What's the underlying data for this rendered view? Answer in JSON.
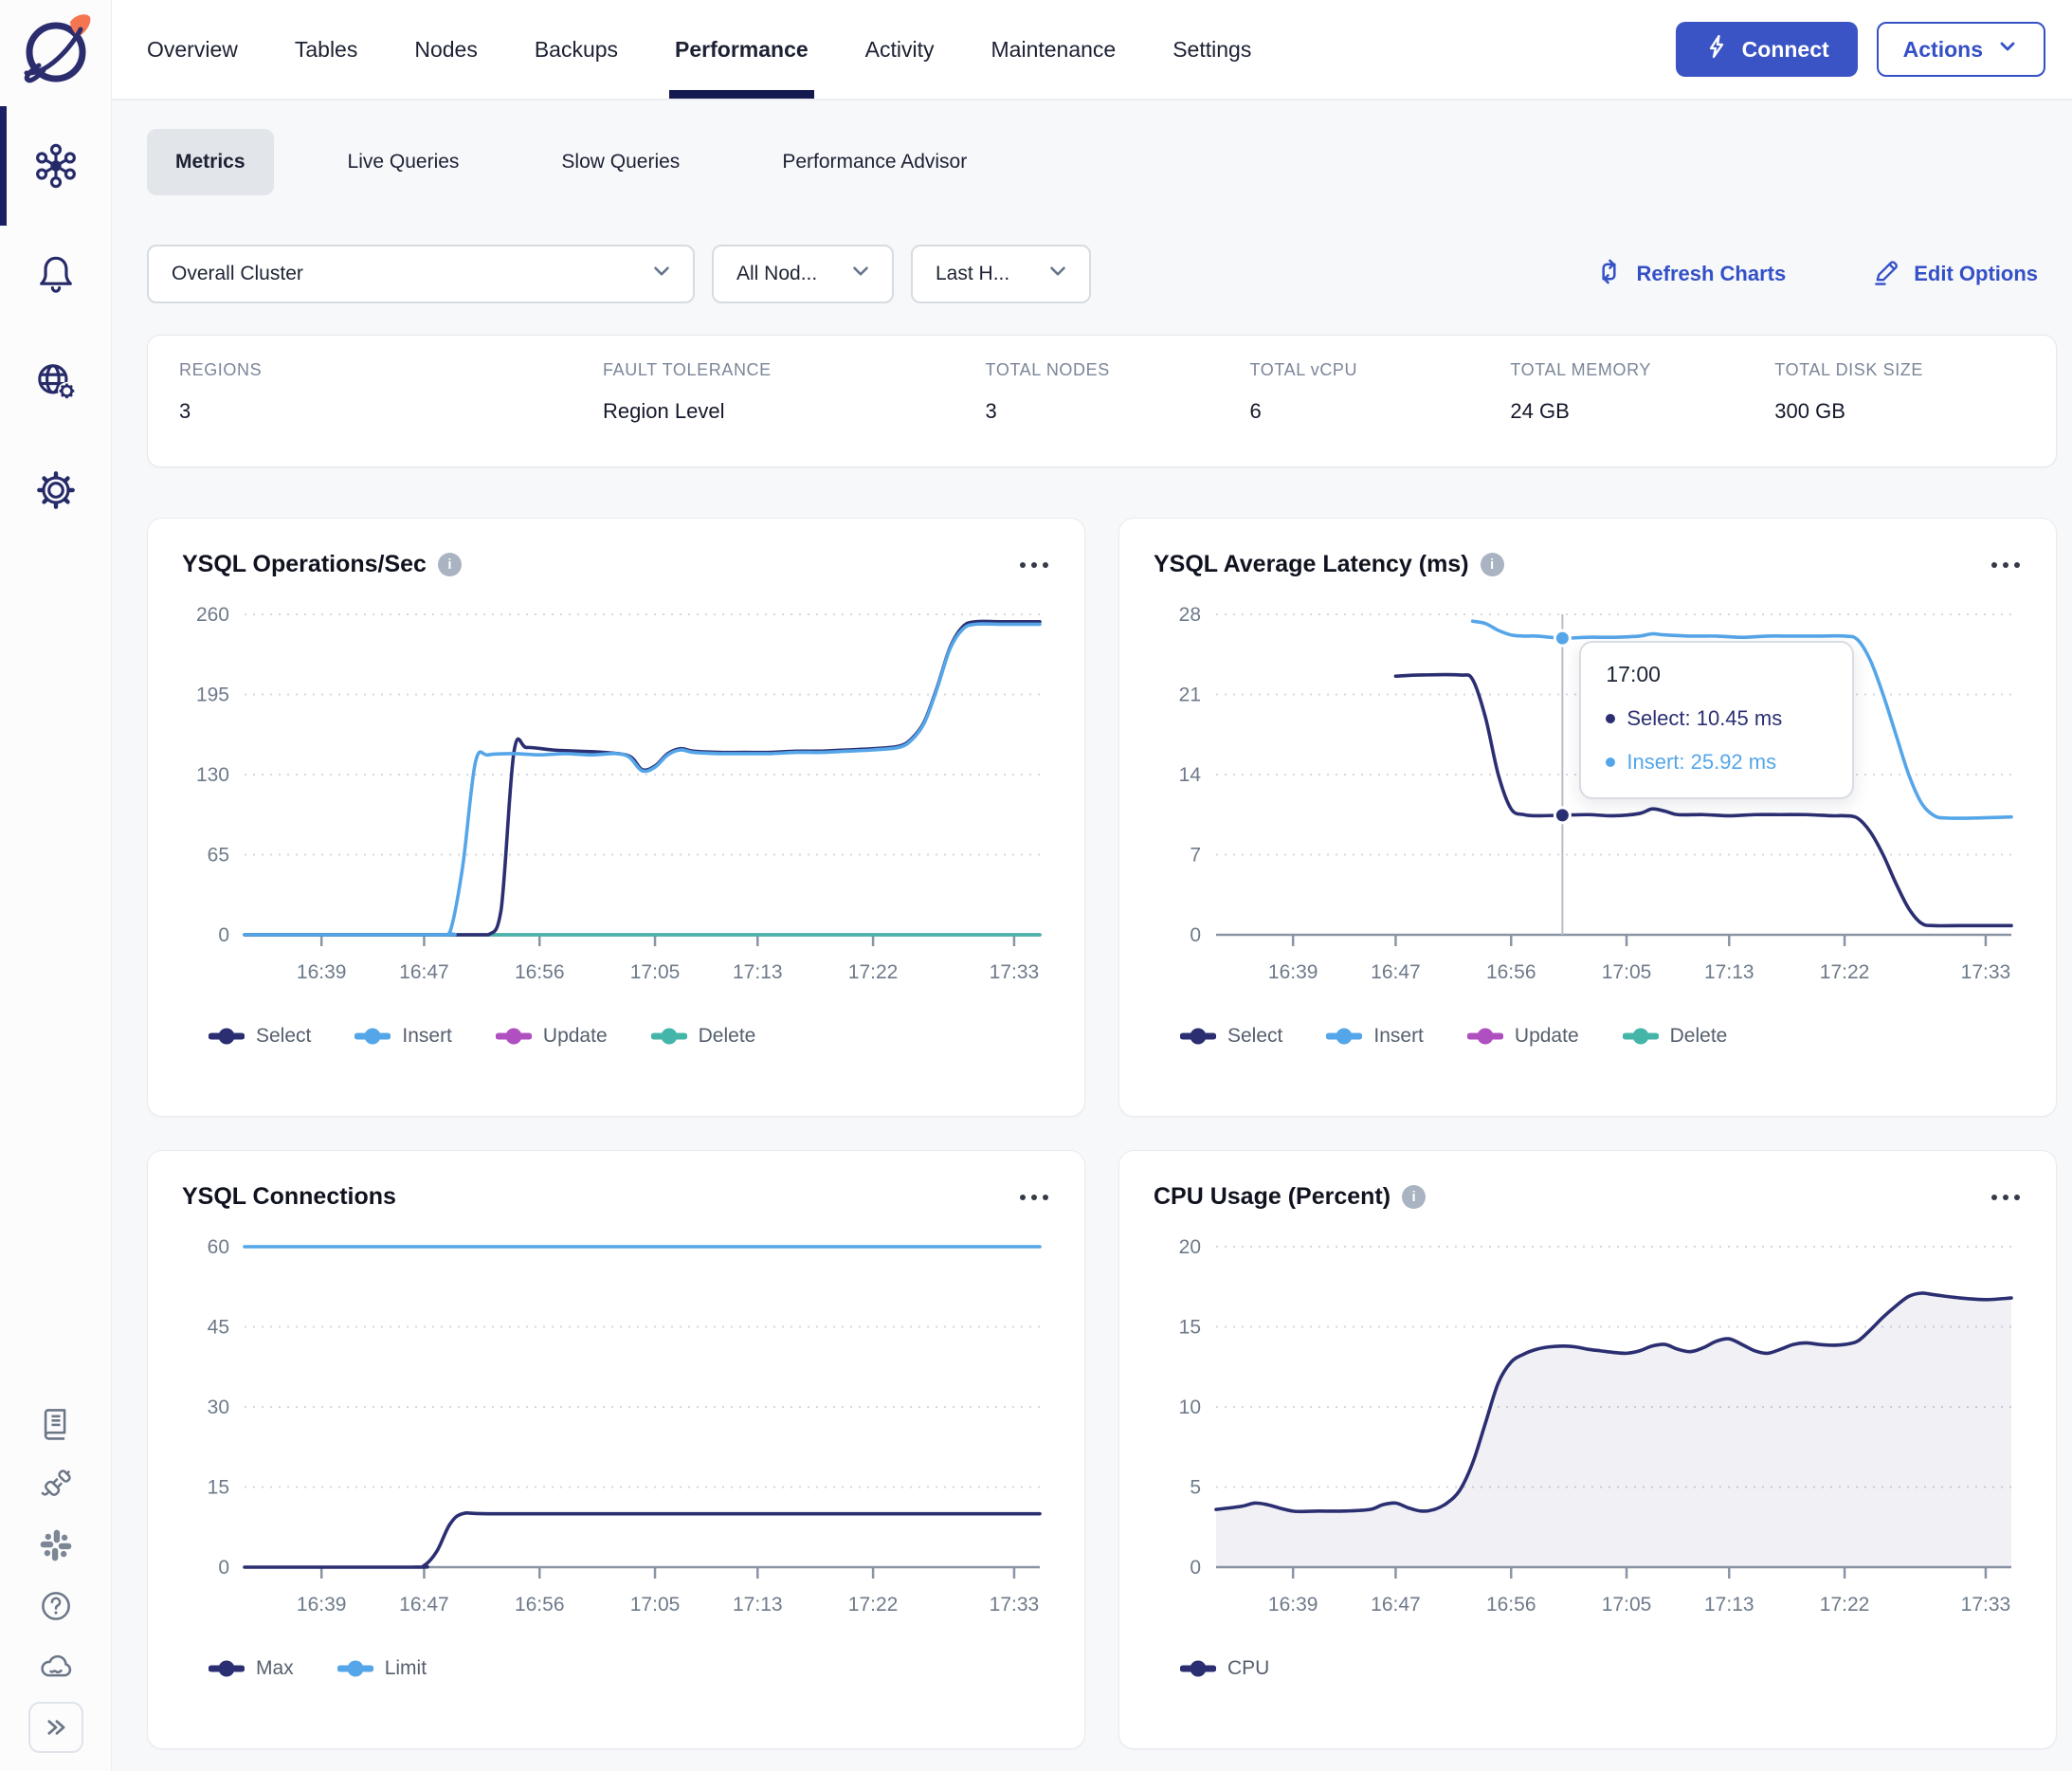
{
  "colors": {
    "accent_blue": "#3450c6",
    "navy_series": "#2b2f72",
    "light_blue_series": "#55a6e8",
    "magenta_series": "#b04fc0",
    "teal_series": "#45b5aa",
    "active_tab_underline": "#141a4f",
    "cpu_area_fill": "rgba(43,47,114,0.07)"
  },
  "sidebar": {
    "items": [
      {
        "icon": "cluster-icon",
        "active": true
      },
      {
        "icon": "bell-icon",
        "active": false
      },
      {
        "icon": "globe-gear-icon",
        "active": false
      },
      {
        "icon": "gear-icon",
        "active": false
      }
    ],
    "footer_items": [
      {
        "icon": "book-icon"
      },
      {
        "icon": "plug-icon"
      },
      {
        "icon": "slack-icon"
      },
      {
        "icon": "help-icon"
      },
      {
        "icon": "cloud-icon"
      },
      {
        "icon": "expand-icon"
      }
    ]
  },
  "topbar": {
    "tabs": [
      "Overview",
      "Tables",
      "Nodes",
      "Backups",
      "Performance",
      "Activity",
      "Maintenance",
      "Settings"
    ],
    "active_tab": "Performance",
    "connect_label": "Connect",
    "actions_label": "Actions"
  },
  "subtabs": {
    "items": [
      "Metrics",
      "Live Queries",
      "Slow Queries",
      "Performance Advisor"
    ],
    "active": "Metrics"
  },
  "filters": {
    "cluster": "Overall Cluster",
    "nodes": "All Nod...",
    "range": "Last H...",
    "refresh_label": "Refresh Charts",
    "edit_label": "Edit Options"
  },
  "misc": {
    "info_glyph": "i"
  },
  "stats": [
    {
      "label": "REGIONS",
      "value": "3"
    },
    {
      "label": "FAULT TOLERANCE",
      "value": "Region Level"
    },
    {
      "label": "TOTAL NODES",
      "value": "3"
    },
    {
      "label": "TOTAL vCPU",
      "value": "6"
    },
    {
      "label": "TOTAL MEMORY",
      "value": "24 GB"
    },
    {
      "label": "TOTAL DISK SIZE",
      "value": "300 GB"
    }
  ],
  "chart_data": [
    {
      "type": "line",
      "title": "YSQL Operations/Sec",
      "info": true,
      "ylim": [
        0,
        260
      ],
      "yticks": [
        0,
        65,
        130,
        195,
        260
      ],
      "x_start": "16:33",
      "x_end": "17:35",
      "xticks": [
        "16:39",
        "16:47",
        "16:56",
        "17:05",
        "17:13",
        "17:22",
        "17:33"
      ],
      "legend": [
        {
          "label": "Select",
          "color": "#2b2f72"
        },
        {
          "label": "Insert",
          "color": "#55a6e8"
        },
        {
          "label": "Update",
          "color": "#b04fc0"
        },
        {
          "label": "Delete",
          "color": "#45b5aa"
        }
      ],
      "series": [
        {
          "name": "Update",
          "color": "#b04fc0",
          "points": [
            [
              "16:33",
              0
            ],
            [
              "17:35",
              0
            ]
          ]
        },
        {
          "name": "Delete",
          "color": "#45b5aa",
          "points": [
            [
              "16:33",
              0
            ],
            [
              "17:35",
              0
            ]
          ]
        },
        {
          "name": "Select",
          "color": "#2b2f72",
          "points": [
            [
              "16:33",
              0
            ],
            [
              "16:50",
              0
            ],
            [
              "16:52",
              0
            ],
            [
              "16:53",
              20
            ],
            [
              "16:54",
              148
            ],
            [
              "16:55",
              152
            ],
            [
              "16:57",
              150
            ],
            [
              "16:59",
              149
            ],
            [
              "17:01",
              148
            ],
            [
              "17:03",
              145
            ],
            [
              "17:04",
              134
            ],
            [
              "17:05",
              137
            ],
            [
              "17:06",
              147
            ],
            [
              "17:07",
              151
            ],
            [
              "17:08",
              149
            ],
            [
              "17:10",
              148
            ],
            [
              "17:12",
              148
            ],
            [
              "17:14",
              148
            ],
            [
              "17:16",
              149
            ],
            [
              "17:18",
              149
            ],
            [
              "17:20",
              150
            ],
            [
              "17:22",
              151
            ],
            [
              "17:24",
              153
            ],
            [
              "17:25",
              159
            ],
            [
              "17:26",
              173
            ],
            [
              "17:27",
              201
            ],
            [
              "17:28",
              233
            ],
            [
              "17:29",
              250
            ],
            [
              "17:30",
              254
            ],
            [
              "17:32",
              254
            ],
            [
              "17:35",
              254
            ]
          ]
        },
        {
          "name": "Insert",
          "color": "#55a6e8",
          "points": [
            [
              "16:33",
              0
            ],
            [
              "16:48",
              0
            ],
            [
              "16:49",
              2
            ],
            [
              "16:50",
              55
            ],
            [
              "16:51",
              140
            ],
            [
              "16:52",
              146
            ],
            [
              "16:54",
              147
            ],
            [
              "16:56",
              146
            ],
            [
              "16:58",
              147
            ],
            [
              "17:00",
              146
            ],
            [
              "17:02",
              147
            ],
            [
              "17:03",
              144
            ],
            [
              "17:04",
              133
            ],
            [
              "17:05",
              136
            ],
            [
              "17:06",
              146
            ],
            [
              "17:07",
              150
            ],
            [
              "17:08",
              148
            ],
            [
              "17:10",
              147
            ],
            [
              "17:12",
              147
            ],
            [
              "17:14",
              147
            ],
            [
              "17:16",
              148
            ],
            [
              "17:18",
              148
            ],
            [
              "17:20",
              149
            ],
            [
              "17:22",
              150
            ],
            [
              "17:24",
              152
            ],
            [
              "17:25",
              158
            ],
            [
              "17:26",
              172
            ],
            [
              "17:27",
              200
            ],
            [
              "17:28",
              232
            ],
            [
              "17:29",
              248
            ],
            [
              "17:30",
              252
            ],
            [
              "17:32",
              252
            ],
            [
              "17:35",
              252
            ]
          ]
        }
      ]
    },
    {
      "type": "line",
      "title": "YSQL Average Latency (ms)",
      "info": true,
      "ylim": [
        0,
        28
      ],
      "yticks": [
        0,
        7,
        14,
        21,
        28
      ],
      "x_start": "16:33",
      "x_end": "17:35",
      "xticks": [
        "16:39",
        "16:47",
        "16:56",
        "17:05",
        "17:13",
        "17:22",
        "17:33"
      ],
      "legend": [
        {
          "label": "Select",
          "color": "#2b2f72"
        },
        {
          "label": "Insert",
          "color": "#55a6e8"
        },
        {
          "label": "Update",
          "color": "#b04fc0"
        },
        {
          "label": "Delete",
          "color": "#45b5aa"
        }
      ],
      "series": [
        {
          "name": "Select",
          "color": "#2b2f72",
          "points": [
            [
              "16:47",
              22.6
            ],
            [
              "16:49",
              22.7
            ],
            [
              "16:52",
              22.7
            ],
            [
              "16:53",
              22.3
            ],
            [
              "16:54",
              19
            ],
            [
              "16:55",
              14
            ],
            [
              "16:56",
              11
            ],
            [
              "16:57",
              10.5
            ],
            [
              "16:58",
              10.4
            ],
            [
              "17:00",
              10.45
            ],
            [
              "17:02",
              10.5
            ],
            [
              "17:04",
              10.4
            ],
            [
              "17:06",
              10.6
            ],
            [
              "17:07",
              11
            ],
            [
              "17:08",
              10.8
            ],
            [
              "17:09",
              10.5
            ],
            [
              "17:11",
              10.5
            ],
            [
              "17:13",
              10.4
            ],
            [
              "17:15",
              10.5
            ],
            [
              "17:17",
              10.5
            ],
            [
              "17:19",
              10.5
            ],
            [
              "17:21",
              10.4
            ],
            [
              "17:22",
              10.4
            ],
            [
              "17:23",
              10.2
            ],
            [
              "17:24",
              9
            ],
            [
              "17:25",
              7
            ],
            [
              "17:26",
              4.5
            ],
            [
              "17:27",
              2.3
            ],
            [
              "17:28",
              1.0
            ],
            [
              "17:29",
              0.8
            ],
            [
              "17:31",
              0.8
            ],
            [
              "17:35",
              0.8
            ]
          ]
        },
        {
          "name": "Insert",
          "color": "#55a6e8",
          "points": [
            [
              "16:53",
              27.4
            ],
            [
              "16:54",
              27.2
            ],
            [
              "16:55",
              26.6
            ],
            [
              "16:56",
              26.2
            ],
            [
              "16:57",
              26.1
            ],
            [
              "16:58",
              26.1
            ],
            [
              "17:00",
              25.92
            ],
            [
              "17:02",
              26
            ],
            [
              "17:04",
              26
            ],
            [
              "17:06",
              26.1
            ],
            [
              "17:07",
              26.3
            ],
            [
              "17:08",
              26.2
            ],
            [
              "17:10",
              26.1
            ],
            [
              "17:12",
              26.1
            ],
            [
              "17:14",
              26
            ],
            [
              "17:16",
              26.1
            ],
            [
              "17:18",
              26.1
            ],
            [
              "17:20",
              26.1
            ],
            [
              "17:22",
              26.1
            ],
            [
              "17:23",
              25.8
            ],
            [
              "17:24",
              24
            ],
            [
              "17:25",
              21
            ],
            [
              "17:26",
              17.5
            ],
            [
              "17:27",
              14
            ],
            [
              "17:28",
              11.5
            ],
            [
              "17:29",
              10.4
            ],
            [
              "17:30",
              10.2
            ],
            [
              "17:32",
              10.2
            ],
            [
              "17:35",
              10.3
            ]
          ]
        }
      ],
      "tooltip": {
        "time": "17:00",
        "rows": [
          {
            "text": "Select: 10.45 ms",
            "v": 10.45,
            "color": "#2b2f72"
          },
          {
            "text": "Insert: 25.92 ms",
            "v": 25.92,
            "color": "#55a6e8"
          }
        ]
      }
    },
    {
      "type": "line",
      "title": "YSQL Connections",
      "info": false,
      "ylim": [
        0,
        60
      ],
      "yticks": [
        0,
        15,
        30,
        45,
        60
      ],
      "x_start": "16:33",
      "x_end": "17:35",
      "xticks": [
        "16:39",
        "16:47",
        "16:56",
        "17:05",
        "17:13",
        "17:22",
        "17:33"
      ],
      "legend": [
        {
          "label": "Max",
          "color": "#2b2f72"
        },
        {
          "label": "Limit",
          "color": "#55a6e8"
        }
      ],
      "series": [
        {
          "name": "Limit",
          "color": "#55a6e8",
          "points": [
            [
              "16:33",
              60
            ],
            [
              "17:35",
              60
            ]
          ]
        },
        {
          "name": "Max",
          "color": "#2b2f72",
          "points": [
            [
              "16:33",
              0
            ],
            [
              "16:46",
              0
            ],
            [
              "16:47",
              0.3
            ],
            [
              "16:48",
              3
            ],
            [
              "16:49",
              8
            ],
            [
              "16:50",
              10
            ],
            [
              "16:52",
              10
            ],
            [
              "17:00",
              10
            ],
            [
              "17:10",
              10
            ],
            [
              "17:20",
              10
            ],
            [
              "17:35",
              10
            ]
          ]
        }
      ]
    },
    {
      "type": "area",
      "title": "CPU Usage (Percent)",
      "info": true,
      "ylim": [
        0,
        20
      ],
      "yticks": [
        0,
        5,
        10,
        15,
        20
      ],
      "x_start": "16:33",
      "x_end": "17:35",
      "xticks": [
        "16:39",
        "16:47",
        "16:56",
        "17:05",
        "17:13",
        "17:22",
        "17:33"
      ],
      "area_fill": "rgba(43,47,114,0.07)",
      "legend": [
        {
          "label": "CPU",
          "color": "#2b2f72"
        }
      ],
      "series": [
        {
          "name": "CPU",
          "color": "#2b2f72",
          "points": [
            [
              "16:33",
              3.6
            ],
            [
              "16:35",
              3.8
            ],
            [
              "16:36",
              4
            ],
            [
              "16:37",
              3.9
            ],
            [
              "16:39",
              3.5
            ],
            [
              "16:41",
              3.5
            ],
            [
              "16:43",
              3.5
            ],
            [
              "16:45",
              3.6
            ],
            [
              "16:46",
              3.9
            ],
            [
              "16:47",
              4
            ],
            [
              "16:48",
              3.7
            ],
            [
              "16:49",
              3.5
            ],
            [
              "16:50",
              3.6
            ],
            [
              "16:51",
              4
            ],
            [
              "16:52",
              4.8
            ],
            [
              "16:53",
              6.5
            ],
            [
              "16:54",
              9
            ],
            [
              "16:55",
              11.5
            ],
            [
              "16:56",
              12.8
            ],
            [
              "16:57",
              13.3
            ],
            [
              "16:58",
              13.6
            ],
            [
              "16:59",
              13.75
            ],
            [
              "17:00",
              13.8
            ],
            [
              "17:01",
              13.75
            ],
            [
              "17:02",
              13.6
            ],
            [
              "17:03",
              13.5
            ],
            [
              "17:04",
              13.4
            ],
            [
              "17:05",
              13.35
            ],
            [
              "17:06",
              13.5
            ],
            [
              "17:07",
              13.8
            ],
            [
              "17:08",
              13.9
            ],
            [
              "17:09",
              13.6
            ],
            [
              "17:10",
              13.45
            ],
            [
              "17:11",
              13.7
            ],
            [
              "17:12",
              14.1
            ],
            [
              "17:13",
              14.25
            ],
            [
              "17:14",
              13.9
            ],
            [
              "17:15",
              13.5
            ],
            [
              "17:16",
              13.35
            ],
            [
              "17:17",
              13.6
            ],
            [
              "17:18",
              13.9
            ],
            [
              "17:19",
              14
            ],
            [
              "17:20",
              13.9
            ],
            [
              "17:21",
              13.85
            ],
            [
              "17:22",
              13.9
            ],
            [
              "17:23",
              14.1
            ],
            [
              "17:24",
              14.8
            ],
            [
              "17:25",
              15.6
            ],
            [
              "17:26",
              16.3
            ],
            [
              "17:27",
              16.9
            ],
            [
              "17:28",
              17.1
            ],
            [
              "17:29",
              17
            ],
            [
              "17:31",
              16.8
            ],
            [
              "17:33",
              16.7
            ],
            [
              "17:35",
              16.8
            ]
          ]
        }
      ]
    }
  ]
}
